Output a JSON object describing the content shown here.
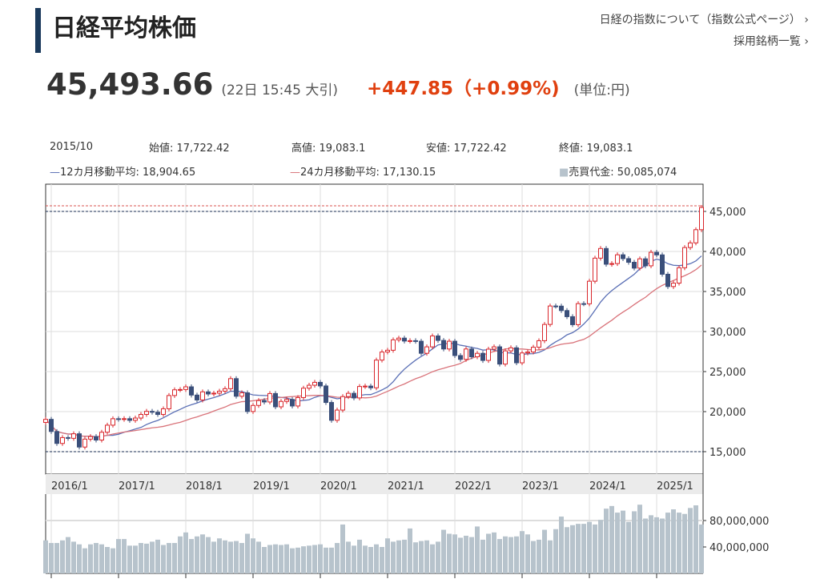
{
  "header": {
    "title": "日経平均株価",
    "link_about": "日経の指数について（指数公式ページ）",
    "link_constituents": "採用銘柄一覧",
    "link_chevron": "›"
  },
  "quote": {
    "price": "45,493.66",
    "time": "(22日 15:45 大引)",
    "change": "+447.85（+0.99%)",
    "unit": "(単位:円)",
    "change_color": "#e0400f"
  },
  "tooltip": {
    "date": "2015/10",
    "open": "始値: 17,722.42",
    "high": "高値: 19,083.1",
    "low": "安値: 17,722.42",
    "close": "終値: 19,083.1",
    "ma12": "12カ月移動平均: 18,904.65",
    "ma24": "24カ月移動平均: 17,130.15",
    "volume": "売買代金: 50,085,074"
  },
  "chart_data": {
    "type": "candlestick",
    "start_month": "2015/12",
    "x_tick_labels": [
      "2016/1",
      "2017/1",
      "2018/1",
      "2019/1",
      "2020/1",
      "2021/1",
      "2022/1",
      "2023/1",
      "2024/1",
      "2025/1"
    ],
    "y_tick_labels": [
      "45,000",
      "40,000",
      "35,000",
      "30,000",
      "25,000",
      "20,000",
      "15,000"
    ],
    "ylim": [
      11500,
      48500
    ],
    "volume_tick_labels": [
      "80,000,000",
      "40,000,000"
    ],
    "volume_unit": "millions",
    "reference_lines": [
      {
        "value": 45700,
        "color": "#d9534f"
      },
      {
        "value": 45000,
        "color": "#1b2f55"
      },
      {
        "value": 15000,
        "color": "#1b2f55"
      }
    ],
    "colors": {
      "up": "#d9262b",
      "down": "#3a4f7a",
      "ma12": "#5a6fb5",
      "ma24": "#d9737a",
      "volume": "#b7c3cc"
    },
    "close": [
      19034,
      17518,
      16027,
      16759,
      16666,
      17235,
      15576,
      16569,
      16887,
      16450,
      17425,
      18308,
      19114,
      19041,
      19119,
      18909,
      19197,
      19651,
      20033,
      19925,
      19646,
      20356,
      22012,
      22725,
      22765,
      23098,
      22068,
      21454,
      22468,
      22202,
      22305,
      22554,
      22865,
      24120,
      21920,
      22351,
      20015,
      20773,
      21385,
      21206,
      22259,
      20601,
      21276,
      21522,
      20704,
      21756,
      22927,
      23294,
      23657,
      23205,
      21143,
      18917,
      20194,
      21878,
      22288,
      21710,
      23140,
      23185,
      22977,
      26434,
      27444,
      27663,
      28966,
      29179,
      28813,
      28860,
      28792,
      27284,
      28090,
      29453,
      28893,
      27822,
      28792,
      27002,
      26527,
      27821,
      26848,
      27280,
      26393,
      27802,
      28092,
      25937,
      27587,
      27969,
      26095,
      27327,
      27446,
      28041,
      28856,
      30888,
      33189,
      33172,
      32619,
      31858,
      30859,
      33487,
      33464,
      36287,
      39166,
      40369,
      38406,
      38488,
      39583,
      39102,
      38648,
      37920,
      39081,
      38208,
      39895,
      39572,
      37156,
      35617,
      36045,
      37965,
      40487,
      41069,
      42718,
      45494
    ],
    "volume": [
      50,
      46,
      46,
      50,
      55,
      48,
      44,
      38,
      44,
      46,
      44,
      40,
      38,
      52,
      52,
      42,
      42,
      46,
      45,
      48,
      51,
      43,
      46,
      46,
      56,
      62,
      52,
      56,
      59,
      55,
      48,
      53,
      50,
      48,
      49,
      46,
      60,
      53,
      48,
      40,
      43,
      44,
      43,
      44,
      38,
      39,
      41,
      42,
      43,
      44,
      39,
      39,
      46,
      74,
      48,
      42,
      51,
      42,
      40,
      44,
      40,
      53,
      48,
      50,
      51,
      68,
      47,
      49,
      50,
      44,
      48,
      66,
      60,
      59,
      54,
      57,
      55,
      71,
      51,
      60,
      62,
      52,
      56,
      55,
      56,
      64,
      59,
      49,
      51,
      66,
      50,
      67,
      86,
      70,
      73,
      75,
      75,
      78,
      74,
      81,
      98,
      102,
      92,
      95,
      78,
      94,
      104,
      83,
      88,
      85,
      83,
      92,
      97,
      92,
      90,
      99,
      103,
      74
    ]
  }
}
